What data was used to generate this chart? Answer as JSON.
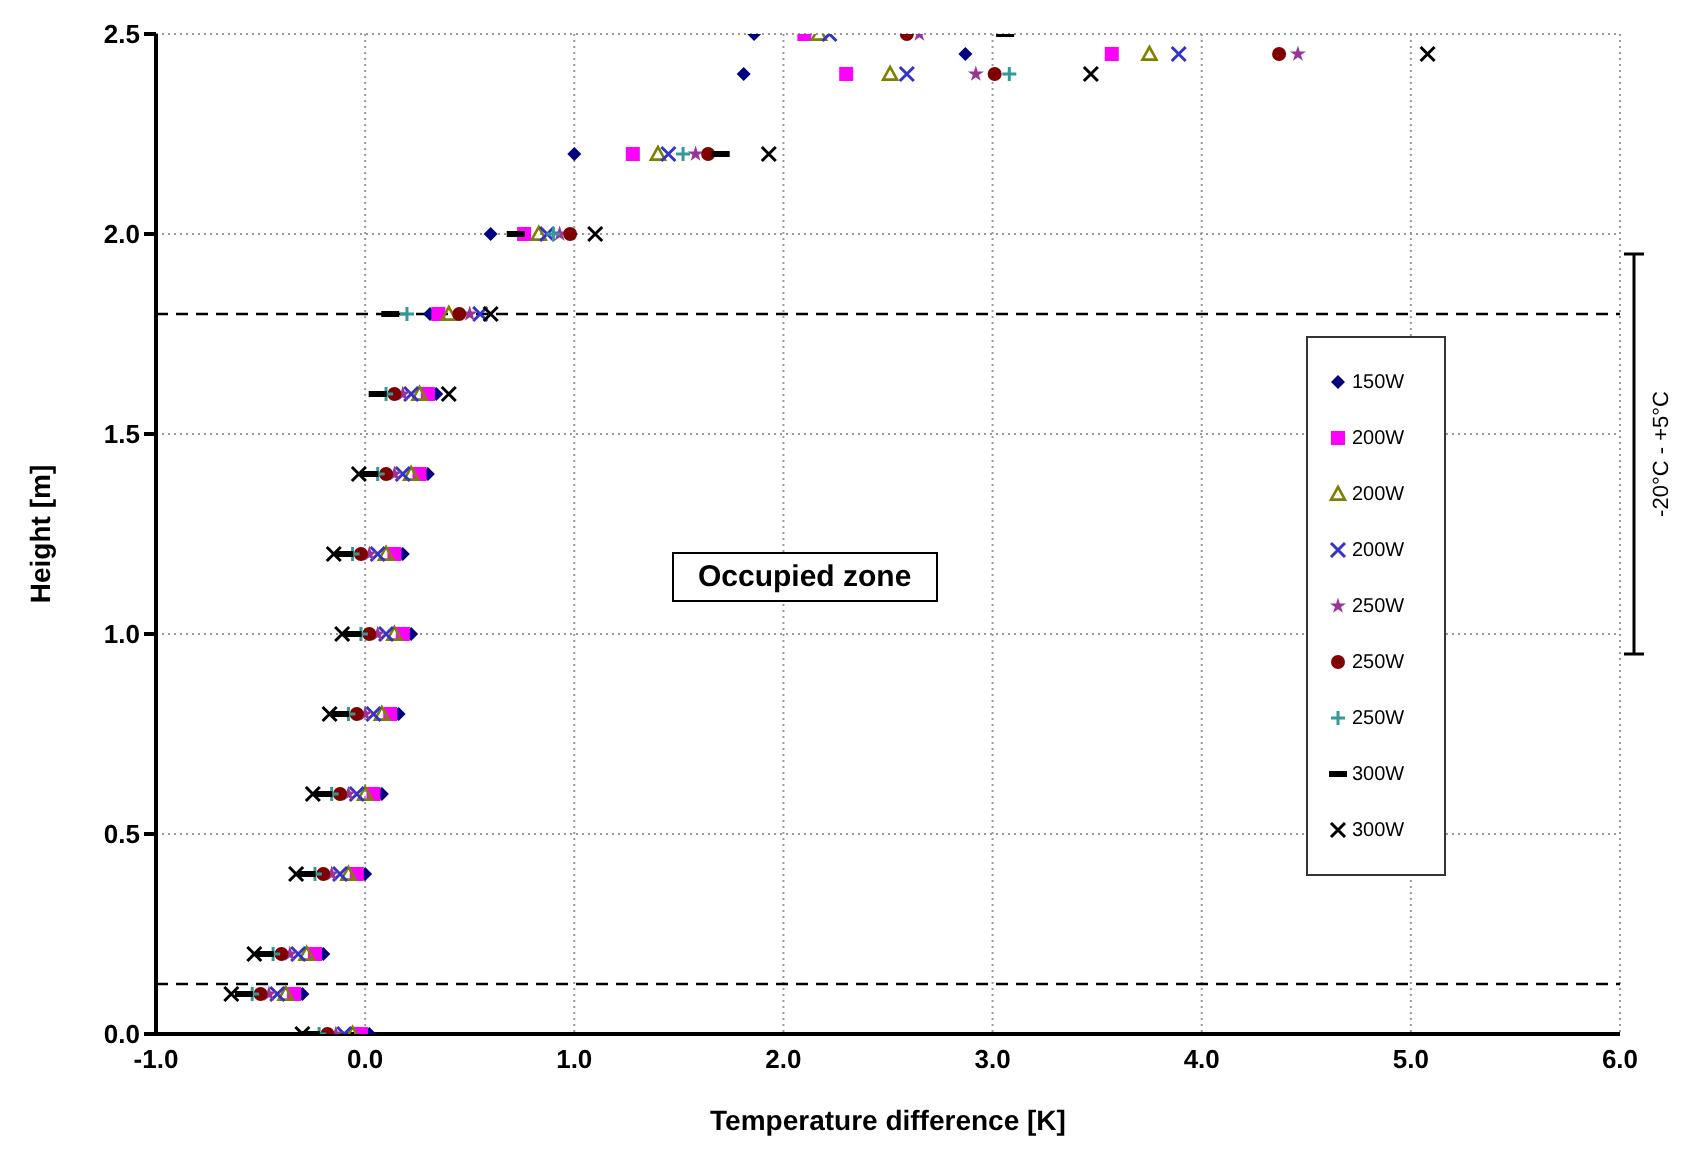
{
  "chart_data": {
    "type": "scatter",
    "xlabel": "Temperature difference [K]",
    "ylabel": "Height [m]",
    "xlim": [
      -1,
      6
    ],
    "xticks": [
      {
        "value": -1,
        "label": "-1.0"
      },
      {
        "value": 0,
        "label": "0.0"
      },
      {
        "value": 1,
        "label": "1.0"
      },
      {
        "value": 2,
        "label": "2.0"
      },
      {
        "value": 3,
        "label": "3.0"
      },
      {
        "value": 4,
        "label": "4.0"
      },
      {
        "value": 5,
        "label": "5.0"
      },
      {
        "value": 6,
        "label": "6.0"
      }
    ],
    "ylim": [
      0,
      2.5
    ],
    "yticks": [
      {
        "value": 0,
        "label": "0.0"
      },
      {
        "value": 0.5,
        "label": "0.5"
      },
      {
        "value": 1,
        "label": "1.0"
      },
      {
        "value": 1.5,
        "label": "1.5"
      },
      {
        "value": 2,
        "label": "2.0"
      },
      {
        "value": 2.5,
        "label": "2.5"
      }
    ],
    "grid": true,
    "legend": "right",
    "annotations": [
      "Occupied zone",
      "-20°C - +5°C"
    ],
    "ref_lines": [
      {
        "axis": "y",
        "value": 1.8,
        "color": "#000000",
        "line_style": "dashed"
      },
      {
        "axis": "y",
        "value": 0.125,
        "color": "#000000",
        "line_style": "dashed"
      }
    ],
    "series": [
      {
        "name": "150W",
        "color": "#000080",
        "marker": "diamond",
        "x": [
          0.02,
          -0.3,
          -0.2,
          0.0,
          0.08,
          0.16,
          0.22,
          0.18,
          0.3,
          0.34,
          0.31,
          0.6,
          1.0,
          1.81,
          2.87,
          1.86
        ],
        "values": [
          0,
          0.1,
          0.2,
          0.4,
          0.6,
          0.8,
          1.0,
          1.2,
          1.4,
          1.6,
          1.8,
          2.0,
          2.2,
          2.4,
          2.45,
          2.5
        ]
      },
      {
        "name": "200W",
        "color": "#ff00ff",
        "marker": "square",
        "x": [
          -0.02,
          -0.34,
          -0.24,
          -0.04,
          0.04,
          0.12,
          0.18,
          0.14,
          0.26,
          0.3,
          0.35,
          0.76,
          1.28,
          2.3,
          3.57,
          2.1
        ],
        "values": [
          0,
          0.1,
          0.2,
          0.4,
          0.6,
          0.8,
          1.0,
          1.2,
          1.4,
          1.6,
          1.8,
          2.0,
          2.2,
          2.4,
          2.45,
          2.5
        ]
      },
      {
        "name": "200W",
        "color": "#808000",
        "marker": "triangle",
        "x": [
          -0.06,
          -0.38,
          -0.28,
          -0.08,
          0.0,
          0.08,
          0.14,
          0.1,
          0.22,
          0.26,
          0.4,
          0.83,
          1.4,
          2.51,
          3.75,
          2.17
        ],
        "values": [
          0,
          0.1,
          0.2,
          0.4,
          0.6,
          0.8,
          1.0,
          1.2,
          1.4,
          1.6,
          1.8,
          2.0,
          2.2,
          2.4,
          2.45,
          2.5
        ]
      },
      {
        "name": "200W",
        "color": "#3333cc",
        "marker": "cross",
        "x": [
          -0.1,
          -0.42,
          -0.32,
          -0.12,
          -0.04,
          0.04,
          0.1,
          0.06,
          0.18,
          0.22,
          0.55,
          0.87,
          1.45,
          2.59,
          3.89,
          2.22
        ],
        "values": [
          0,
          0.1,
          0.2,
          0.4,
          0.6,
          0.8,
          1.0,
          1.2,
          1.4,
          1.6,
          1.8,
          2.0,
          2.2,
          2.4,
          2.45,
          2.5
        ]
      },
      {
        "name": "250W",
        "color": "#993399",
        "marker": "star",
        "x": [
          -0.14,
          -0.46,
          -0.36,
          -0.16,
          -0.08,
          0.0,
          0.06,
          0.02,
          0.14,
          0.18,
          0.5,
          0.93,
          1.58,
          2.92,
          4.46,
          2.65
        ],
        "values": [
          0,
          0.1,
          0.2,
          0.4,
          0.6,
          0.8,
          1.0,
          1.2,
          1.4,
          1.6,
          1.8,
          2.0,
          2.2,
          2.4,
          2.45,
          2.5
        ]
      },
      {
        "name": "250W",
        "color": "#800000",
        "marker": "circle",
        "x": [
          -0.18,
          -0.5,
          -0.4,
          -0.2,
          -0.12,
          -0.04,
          0.02,
          -0.02,
          0.1,
          0.14,
          0.45,
          0.98,
          1.64,
          3.01,
          4.37,
          2.59
        ],
        "values": [
          0,
          0.1,
          0.2,
          0.4,
          0.6,
          0.8,
          1.0,
          1.2,
          1.4,
          1.6,
          1.8,
          2.0,
          2.2,
          2.4,
          2.45,
          2.5
        ]
      },
      {
        "name": "250W",
        "color": "#339999",
        "marker": "plus",
        "x": [
          -0.22,
          -0.54,
          -0.44,
          -0.24,
          -0.16,
          -0.08,
          -0.02,
          -0.06,
          0.06,
          0.1,
          0.2,
          0.9,
          1.52,
          3.08
        ],
        "values": [
          0,
          0.1,
          0.2,
          0.4,
          0.6,
          0.8,
          1.0,
          1.2,
          1.4,
          1.6,
          1.8,
          2.0,
          2.2,
          2.4
        ]
      },
      {
        "name": "300W",
        "color": "#000000",
        "x": [
          -0.26,
          -0.58,
          -0.48,
          -0.28,
          -0.2,
          -0.12,
          -0.06,
          -0.1,
          0.02,
          0.06,
          0.12,
          0.72,
          1.7,
          3.06
        ],
        "values": [
          0,
          0.1,
          0.2,
          0.4,
          0.6,
          0.8,
          1.0,
          1.2,
          1.4,
          1.6,
          1.8,
          2.0,
          2.2,
          2.5
        ]
      },
      {
        "name": "300W",
        "color": "#000000",
        "marker": "cross",
        "x": [
          -0.3,
          -0.64,
          -0.53,
          -0.33,
          -0.25,
          -0.17,
          -0.11,
          -0.15,
          -0.03,
          0.4,
          0.6,
          1.1,
          1.93,
          3.47,
          5.08
        ],
        "values": [
          0,
          0.1,
          0.2,
          0.4,
          0.6,
          0.8,
          1.0,
          1.2,
          1.4,
          1.6,
          1.8,
          2.0,
          2.2,
          2.4,
          2.45
        ]
      }
    ]
  }
}
